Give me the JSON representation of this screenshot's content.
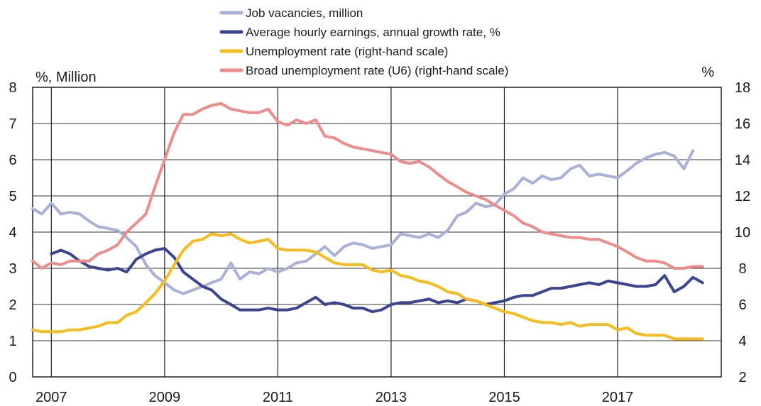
{
  "chart_data": {
    "type": "line",
    "left_axis": {
      "unit_label": "%, Million",
      "range": [
        0,
        8
      ],
      "ticks": [
        "0",
        "1",
        "2",
        "3",
        "4",
        "5",
        "6",
        "7",
        "8"
      ]
    },
    "right_axis": {
      "unit_label": "%",
      "range": [
        2,
        18
      ],
      "ticks": [
        "2",
        "4",
        "6",
        "8",
        "10",
        "12",
        "14",
        "16",
        "18"
      ]
    },
    "x_axis": {
      "range": [
        2006.67,
        2018.83
      ],
      "ticks": [
        "2007",
        "2009",
        "2011",
        "2013",
        "2015",
        "2017"
      ]
    },
    "grid": "horizontal",
    "legend_position": "top",
    "series": [
      {
        "name": "Job vacancies, million",
        "axis": "left",
        "color": "#aab0d8",
        "points": [
          [
            2006.67,
            4.65
          ],
          [
            2006.83,
            4.5
          ],
          [
            2007.0,
            4.8
          ],
          [
            2007.17,
            4.5
          ],
          [
            2007.33,
            4.55
          ],
          [
            2007.5,
            4.5
          ],
          [
            2007.67,
            4.3
          ],
          [
            2007.83,
            4.15
          ],
          [
            2008.0,
            4.1
          ],
          [
            2008.17,
            4.05
          ],
          [
            2008.33,
            3.85
          ],
          [
            2008.5,
            3.6
          ],
          [
            2008.67,
            3.1
          ],
          [
            2008.83,
            2.8
          ],
          [
            2009.0,
            2.6
          ],
          [
            2009.17,
            2.4
          ],
          [
            2009.33,
            2.3
          ],
          [
            2009.5,
            2.4
          ],
          [
            2009.67,
            2.5
          ],
          [
            2009.83,
            2.6
          ],
          [
            2010.0,
            2.7
          ],
          [
            2010.17,
            3.15
          ],
          [
            2010.33,
            2.7
          ],
          [
            2010.5,
            2.9
          ],
          [
            2010.67,
            2.85
          ],
          [
            2010.83,
            3.0
          ],
          [
            2011.0,
            2.9
          ],
          [
            2011.17,
            3.0
          ],
          [
            2011.33,
            3.15
          ],
          [
            2011.5,
            3.2
          ],
          [
            2011.67,
            3.4
          ],
          [
            2011.83,
            3.6
          ],
          [
            2012.0,
            3.35
          ],
          [
            2012.17,
            3.6
          ],
          [
            2012.33,
            3.7
          ],
          [
            2012.5,
            3.65
          ],
          [
            2012.67,
            3.55
          ],
          [
            2012.83,
            3.6
          ],
          [
            2013.0,
            3.65
          ],
          [
            2013.17,
            3.95
          ],
          [
            2013.33,
            3.9
          ],
          [
            2013.5,
            3.85
          ],
          [
            2013.67,
            3.95
          ],
          [
            2013.83,
            3.85
          ],
          [
            2014.0,
            4.05
          ],
          [
            2014.17,
            4.45
          ],
          [
            2014.33,
            4.55
          ],
          [
            2014.5,
            4.8
          ],
          [
            2014.67,
            4.7
          ],
          [
            2014.83,
            4.75
          ],
          [
            2015.0,
            5.05
          ],
          [
            2015.17,
            5.2
          ],
          [
            2015.33,
            5.5
          ],
          [
            2015.5,
            5.35
          ],
          [
            2015.67,
            5.55
          ],
          [
            2015.83,
            5.45
          ],
          [
            2016.0,
            5.5
          ],
          [
            2016.17,
            5.75
          ],
          [
            2016.33,
            5.85
          ],
          [
            2016.5,
            5.55
          ],
          [
            2016.67,
            5.6
          ],
          [
            2016.83,
            5.55
          ],
          [
            2017.0,
            5.5
          ],
          [
            2017.17,
            5.7
          ],
          [
            2017.33,
            5.9
          ],
          [
            2017.5,
            6.05
          ],
          [
            2017.67,
            6.15
          ],
          [
            2017.83,
            6.2
          ],
          [
            2018.0,
            6.1
          ],
          [
            2018.17,
            5.75
          ],
          [
            2018.33,
            6.25
          ]
        ]
      },
      {
        "name": "Average hourly earnings, annual growth rate, %",
        "axis": "left",
        "color": "#3c4592",
        "points": [
          [
            2007.0,
            3.4
          ],
          [
            2007.17,
            3.5
          ],
          [
            2007.33,
            3.4
          ],
          [
            2007.5,
            3.2
          ],
          [
            2007.67,
            3.05
          ],
          [
            2007.83,
            3.0
          ],
          [
            2008.0,
            2.95
          ],
          [
            2008.17,
            3.0
          ],
          [
            2008.33,
            2.9
          ],
          [
            2008.5,
            3.25
          ],
          [
            2008.67,
            3.4
          ],
          [
            2008.83,
            3.5
          ],
          [
            2009.0,
            3.55
          ],
          [
            2009.17,
            3.3
          ],
          [
            2009.33,
            2.9
          ],
          [
            2009.5,
            2.7
          ],
          [
            2009.67,
            2.5
          ],
          [
            2009.83,
            2.4
          ],
          [
            2010.0,
            2.15
          ],
          [
            2010.17,
            2.0
          ],
          [
            2010.33,
            1.85
          ],
          [
            2010.5,
            1.85
          ],
          [
            2010.67,
            1.85
          ],
          [
            2010.83,
            1.9
          ],
          [
            2011.0,
            1.85
          ],
          [
            2011.17,
            1.85
          ],
          [
            2011.33,
            1.9
          ],
          [
            2011.5,
            2.05
          ],
          [
            2011.67,
            2.2
          ],
          [
            2011.83,
            2.0
          ],
          [
            2012.0,
            2.05
          ],
          [
            2012.17,
            2.0
          ],
          [
            2012.33,
            1.9
          ],
          [
            2012.5,
            1.9
          ],
          [
            2012.67,
            1.8
          ],
          [
            2012.83,
            1.85
          ],
          [
            2013.0,
            2.0
          ],
          [
            2013.17,
            2.05
          ],
          [
            2013.33,
            2.05
          ],
          [
            2013.5,
            2.1
          ],
          [
            2013.67,
            2.15
          ],
          [
            2013.83,
            2.05
          ],
          [
            2014.0,
            2.1
          ],
          [
            2014.17,
            2.05
          ],
          [
            2014.33,
            2.15
          ],
          [
            2014.5,
            2.1
          ],
          [
            2014.67,
            2.0
          ],
          [
            2014.83,
            2.05
          ],
          [
            2015.0,
            2.1
          ],
          [
            2015.17,
            2.2
          ],
          [
            2015.33,
            2.25
          ],
          [
            2015.5,
            2.25
          ],
          [
            2015.67,
            2.35
          ],
          [
            2015.83,
            2.45
          ],
          [
            2016.0,
            2.45
          ],
          [
            2016.17,
            2.5
          ],
          [
            2016.33,
            2.55
          ],
          [
            2016.5,
            2.6
          ],
          [
            2016.67,
            2.55
          ],
          [
            2016.83,
            2.65
          ],
          [
            2017.0,
            2.6
          ],
          [
            2017.17,
            2.55
          ],
          [
            2017.33,
            2.5
          ],
          [
            2017.5,
            2.5
          ],
          [
            2017.67,
            2.55
          ],
          [
            2017.83,
            2.8
          ],
          [
            2018.0,
            2.35
          ],
          [
            2018.17,
            2.5
          ],
          [
            2018.33,
            2.75
          ],
          [
            2018.5,
            2.6
          ]
        ]
      },
      {
        "name": "Unemployment rate (right-hand scale)",
        "axis": "right",
        "color": "#f5bc1c",
        "points": [
          [
            2006.67,
            4.6
          ],
          [
            2006.83,
            4.5
          ],
          [
            2007.0,
            4.5
          ],
          [
            2007.17,
            4.5
          ],
          [
            2007.33,
            4.6
          ],
          [
            2007.5,
            4.6
          ],
          [
            2007.67,
            4.7
          ],
          [
            2007.83,
            4.8
          ],
          [
            2008.0,
            5.0
          ],
          [
            2008.17,
            5.0
          ],
          [
            2008.33,
            5.4
          ],
          [
            2008.5,
            5.6
          ],
          [
            2008.67,
            6.1
          ],
          [
            2008.83,
            6.6
          ],
          [
            2009.0,
            7.3
          ],
          [
            2009.17,
            8.2
          ],
          [
            2009.33,
            9.0
          ],
          [
            2009.5,
            9.5
          ],
          [
            2009.67,
            9.6
          ],
          [
            2009.83,
            9.9
          ],
          [
            2010.0,
            9.8
          ],
          [
            2010.17,
            9.9
          ],
          [
            2010.33,
            9.6
          ],
          [
            2010.5,
            9.4
          ],
          [
            2010.67,
            9.5
          ],
          [
            2010.83,
            9.6
          ],
          [
            2011.0,
            9.1
          ],
          [
            2011.17,
            9.0
          ],
          [
            2011.33,
            9.0
          ],
          [
            2011.5,
            9.0
          ],
          [
            2011.67,
            8.9
          ],
          [
            2011.83,
            8.6
          ],
          [
            2012.0,
            8.3
          ],
          [
            2012.17,
            8.2
          ],
          [
            2012.33,
            8.2
          ],
          [
            2012.5,
            8.2
          ],
          [
            2012.67,
            7.9
          ],
          [
            2012.83,
            7.8
          ],
          [
            2013.0,
            7.9
          ],
          [
            2013.17,
            7.6
          ],
          [
            2013.33,
            7.5
          ],
          [
            2013.5,
            7.3
          ],
          [
            2013.67,
            7.2
          ],
          [
            2013.83,
            7.0
          ],
          [
            2014.0,
            6.7
          ],
          [
            2014.17,
            6.6
          ],
          [
            2014.33,
            6.3
          ],
          [
            2014.5,
            6.2
          ],
          [
            2014.67,
            6.0
          ],
          [
            2014.83,
            5.8
          ],
          [
            2015.0,
            5.6
          ],
          [
            2015.17,
            5.5
          ],
          [
            2015.33,
            5.3
          ],
          [
            2015.5,
            5.1
          ],
          [
            2015.67,
            5.0
          ],
          [
            2015.83,
            5.0
          ],
          [
            2016.0,
            4.9
          ],
          [
            2016.17,
            5.0
          ],
          [
            2016.33,
            4.8
          ],
          [
            2016.5,
            4.9
          ],
          [
            2016.67,
            4.9
          ],
          [
            2016.83,
            4.9
          ],
          [
            2017.0,
            4.6
          ],
          [
            2017.17,
            4.7
          ],
          [
            2017.33,
            4.4
          ],
          [
            2017.5,
            4.3
          ],
          [
            2017.67,
            4.3
          ],
          [
            2017.83,
            4.3
          ],
          [
            2018.0,
            4.1
          ],
          [
            2018.17,
            4.1
          ],
          [
            2018.33,
            4.1
          ],
          [
            2018.5,
            4.1
          ]
        ]
      },
      {
        "name": "Broad unemployment rate (U6) (right-hand scale)",
        "axis": "right",
        "color": "#ee8c8c",
        "points": [
          [
            2006.67,
            8.4
          ],
          [
            2006.83,
            8.0
          ],
          [
            2007.0,
            8.3
          ],
          [
            2007.17,
            8.2
          ],
          [
            2007.33,
            8.4
          ],
          [
            2007.5,
            8.4
          ],
          [
            2007.67,
            8.4
          ],
          [
            2007.83,
            8.8
          ],
          [
            2008.0,
            9.0
          ],
          [
            2008.17,
            9.3
          ],
          [
            2008.33,
            10.0
          ],
          [
            2008.5,
            10.5
          ],
          [
            2008.67,
            11.0
          ],
          [
            2008.83,
            12.5
          ],
          [
            2009.0,
            14.0
          ],
          [
            2009.17,
            15.5
          ],
          [
            2009.33,
            16.5
          ],
          [
            2009.5,
            16.5
          ],
          [
            2009.67,
            16.8
          ],
          [
            2009.83,
            17.0
          ],
          [
            2010.0,
            17.1
          ],
          [
            2010.17,
            16.8
          ],
          [
            2010.33,
            16.7
          ],
          [
            2010.5,
            16.6
          ],
          [
            2010.67,
            16.6
          ],
          [
            2010.83,
            16.8
          ],
          [
            2011.0,
            16.1
          ],
          [
            2011.17,
            15.9
          ],
          [
            2011.33,
            16.2
          ],
          [
            2011.5,
            16.0
          ],
          [
            2011.67,
            16.2
          ],
          [
            2011.83,
            15.3
          ],
          [
            2012.0,
            15.2
          ],
          [
            2012.17,
            14.9
          ],
          [
            2012.33,
            14.7
          ],
          [
            2012.5,
            14.6
          ],
          [
            2012.67,
            14.5
          ],
          [
            2012.83,
            14.4
          ],
          [
            2013.0,
            14.3
          ],
          [
            2013.17,
            13.9
          ],
          [
            2013.33,
            13.8
          ],
          [
            2013.5,
            13.9
          ],
          [
            2013.67,
            13.6
          ],
          [
            2013.83,
            13.2
          ],
          [
            2014.0,
            12.8
          ],
          [
            2014.17,
            12.5
          ],
          [
            2014.33,
            12.2
          ],
          [
            2014.5,
            12.0
          ],
          [
            2014.67,
            11.8
          ],
          [
            2014.83,
            11.5
          ],
          [
            2015.0,
            11.2
          ],
          [
            2015.17,
            10.9
          ],
          [
            2015.33,
            10.5
          ],
          [
            2015.5,
            10.3
          ],
          [
            2015.67,
            10.0
          ],
          [
            2015.83,
            9.9
          ],
          [
            2016.0,
            9.8
          ],
          [
            2016.17,
            9.7
          ],
          [
            2016.33,
            9.7
          ],
          [
            2016.5,
            9.6
          ],
          [
            2016.67,
            9.6
          ],
          [
            2016.83,
            9.4
          ],
          [
            2017.0,
            9.2
          ],
          [
            2017.17,
            8.9
          ],
          [
            2017.33,
            8.6
          ],
          [
            2017.5,
            8.4
          ],
          [
            2017.67,
            8.4
          ],
          [
            2017.83,
            8.3
          ],
          [
            2018.0,
            8.0
          ],
          [
            2018.17,
            8.0
          ],
          [
            2018.33,
            8.1
          ],
          [
            2018.5,
            8.1
          ]
        ]
      }
    ]
  }
}
